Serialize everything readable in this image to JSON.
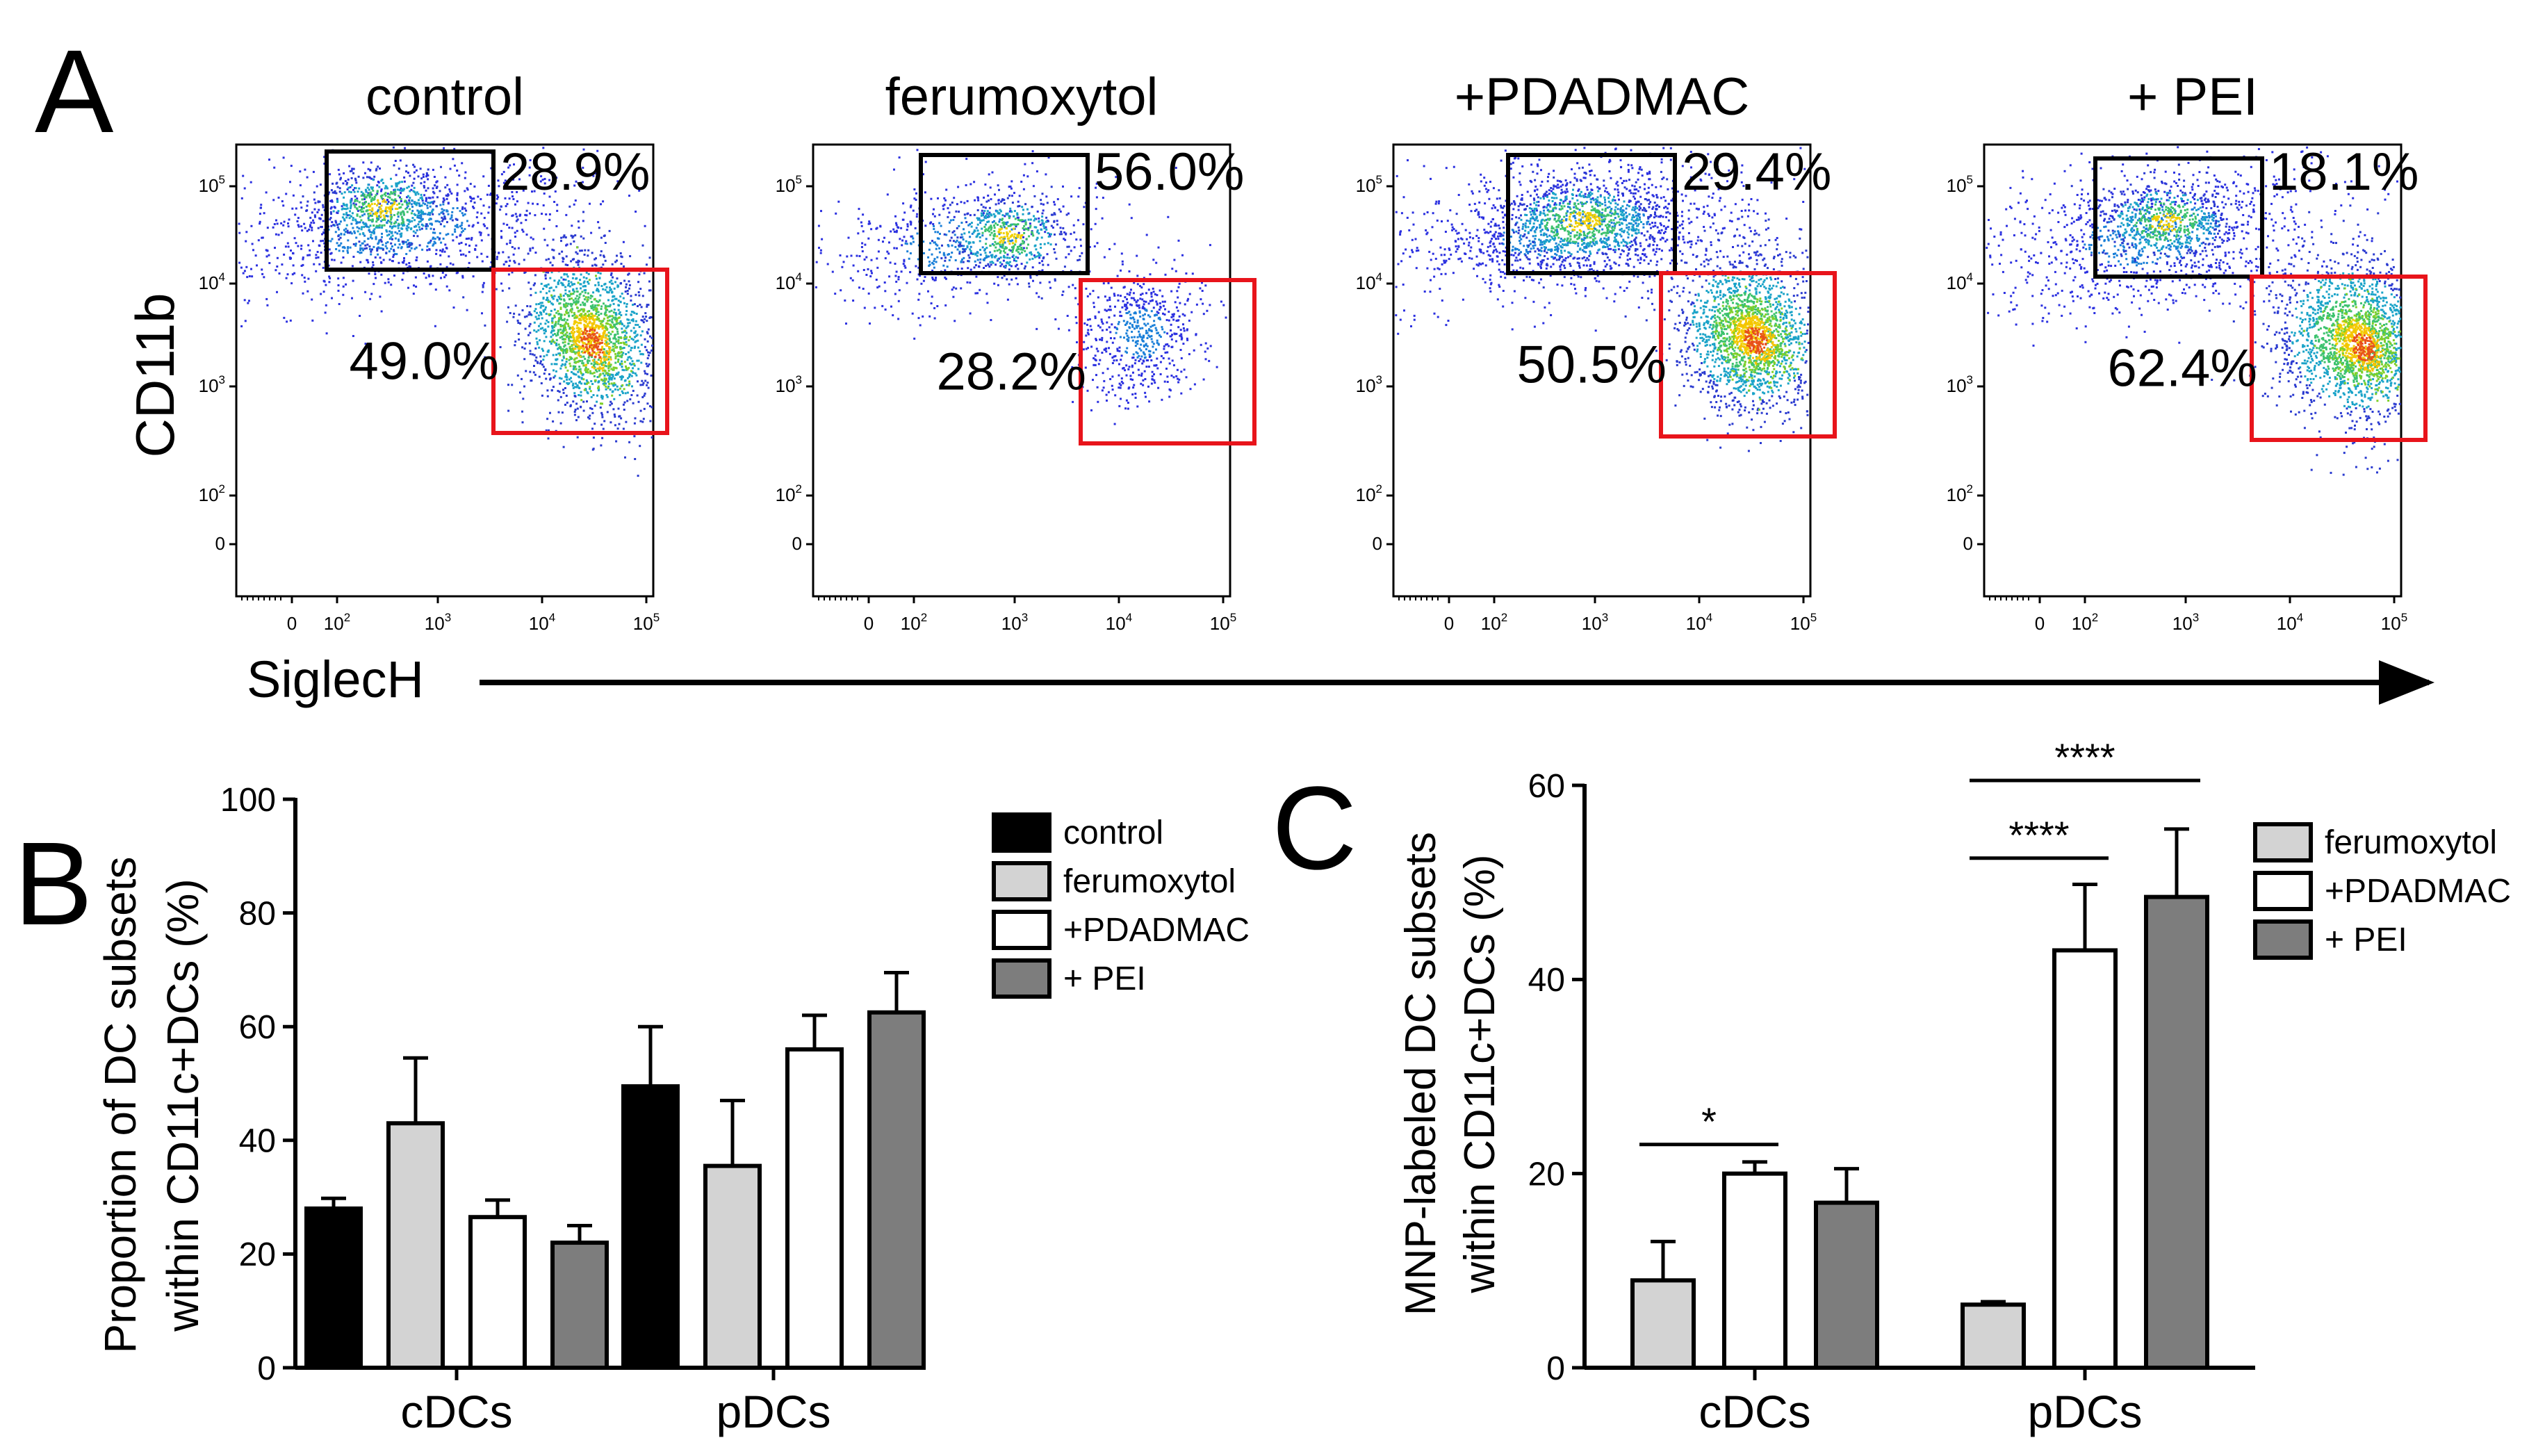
{
  "panel_labels": {
    "A": "A",
    "B": "B",
    "C": "C"
  },
  "flow": {
    "y_axis_label": "CD11b",
    "x_axis_label": "SiglecH",
    "y_ticks": [
      {
        "base": "10",
        "exp": "5"
      },
      {
        "base": "10",
        "exp": "4"
      },
      {
        "base": "10",
        "exp": "3"
      },
      {
        "base": "10",
        "exp": "2"
      },
      {
        "base": "0",
        "exp": ""
      }
    ],
    "x_ticks": [
      {
        "base": "0",
        "exp": ""
      },
      {
        "base": "10",
        "exp": "2"
      },
      {
        "base": "10",
        "exp": "3"
      },
      {
        "base": "10",
        "exp": "4"
      },
      {
        "base": "10",
        "exp": "5"
      }
    ],
    "gate_colors": {
      "cdc_gate": "#000000",
      "pdc_gate": "#e8141b"
    },
    "plots": [
      {
        "title": "control",
        "cdc_gate_pct": "28.9%",
        "pdc_gate_pct": "49.0%"
      },
      {
        "title": "ferumoxytol",
        "cdc_gate_pct": "56.0%",
        "pdc_gate_pct": "28.2%"
      },
      {
        "title": "+PDADMAC",
        "cdc_gate_pct": "29.4%",
        "pdc_gate_pct": "50.5%"
      },
      {
        "title": "+ PEI",
        "cdc_gate_pct": "18.1%",
        "pdc_gate_pct": "62.4%"
      }
    ]
  },
  "chart_data": [
    {
      "panel": "B",
      "type": "bar",
      "title": "",
      "xlabel": "",
      "ylabel": "Proportion of DC subsets within CD11c+DCs (%)",
      "ylabel_lines": [
        "Proportion of DC subsets",
        "within CD11c+DCs (%)"
      ],
      "ylim": [
        0,
        100
      ],
      "yticks": [
        0,
        20,
        40,
        60,
        80,
        100
      ],
      "categories": [
        "cDCs",
        "pDCs"
      ],
      "legend_position": "right",
      "series": [
        {
          "name": "control",
          "color": "#000000",
          "values": [
            28,
            49.5
          ],
          "errors": [
            1.8,
            10.5
          ]
        },
        {
          "name": "ferumoxytol",
          "color": "#d3d3d3",
          "values": [
            43,
            35.5
          ],
          "errors": [
            11.5,
            11.5
          ]
        },
        {
          "name": "+PDADMAC",
          "color": "#ffffff",
          "values": [
            26.5,
            56
          ],
          "errors": [
            3,
            6
          ]
        },
        {
          "name": "+ PEI",
          "color": "#7d7d7d",
          "values": [
            22,
            62.5
          ],
          "errors": [
            3,
            7
          ]
        }
      ],
      "annotations": []
    },
    {
      "panel": "C",
      "type": "bar",
      "title": "",
      "xlabel": "",
      "ylabel": "MNP-labeled DC subsets within CD11c+DCs (%)",
      "ylabel_lines": [
        "MNP-labeled DC subsets",
        "within CD11c+DCs (%)"
      ],
      "ylim": [
        0,
        60
      ],
      "yticks": [
        0,
        20,
        40,
        60
      ],
      "categories": [
        "cDCs",
        "pDCs"
      ],
      "legend_position": "right",
      "series": [
        {
          "name": "ferumoxytol",
          "color": "#d3d3d3",
          "values": [
            9,
            6.5
          ],
          "errors": [
            4,
            0.3
          ]
        },
        {
          "name": "+PDADMAC",
          "color": "#ffffff",
          "values": [
            20,
            43
          ],
          "errors": [
            1.2,
            6.8
          ]
        },
        {
          "name": "+ PEI",
          "color": "#7d7d7d",
          "values": [
            17,
            48.5
          ],
          "errors": [
            3.5,
            7
          ]
        }
      ],
      "annotations": [
        {
          "label": "*",
          "category": 0,
          "from_series": 0,
          "to_series": 1,
          "y": 23
        },
        {
          "label": "****",
          "category": 1,
          "from_series": 0,
          "to_series": 1,
          "y": 52.5
        },
        {
          "label": "****",
          "category": 1,
          "from_series": 0,
          "to_series": 2,
          "y": 60.5
        }
      ]
    }
  ]
}
